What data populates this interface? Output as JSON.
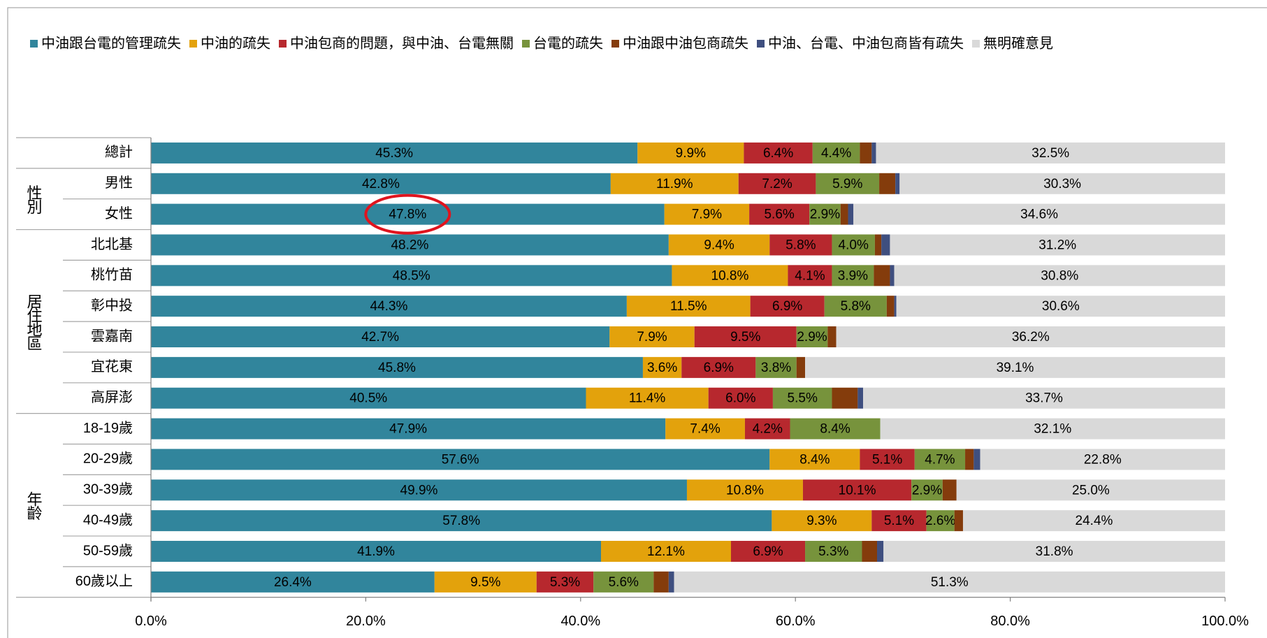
{
  "chart_data": {
    "type": "stacked_bar_horizontal",
    "categories": [
      "總計",
      "男性",
      "女性",
      "北北基",
      "桃竹苗",
      "彰中投",
      "雲嘉南",
      "宜花東",
      "高屏澎",
      "18-19歲",
      "20-29歲",
      "30-39歲",
      "40-49歲",
      "50-59歲",
      "60歲以上"
    ],
    "category_groups": [
      null,
      "性別",
      "性別",
      "居住地區",
      "居住地區",
      "居住地區",
      "居住地區",
      "居住地區",
      "居住地區",
      "年齡",
      "年齡",
      "年齡",
      "年齡",
      "年齡",
      "年齡"
    ],
    "series": [
      {
        "name": "中油跟台電的管理疏失",
        "color": "#31859c",
        "label_color": "#e6eef0",
        "values": [
          45.3,
          42.8,
          47.8,
          48.2,
          48.5,
          44.3,
          42.7,
          45.8,
          40.5,
          47.9,
          57.6,
          49.9,
          57.8,
          41.9,
          26.4
        ],
        "value_labels": [
          "45.3%",
          "42.8%",
          "47.8%",
          "48.2%",
          "48.5%",
          "44.3%",
          "42.7%",
          "45.8%",
          "40.5%",
          "47.9%",
          "57.6%",
          "49.9%",
          "57.8%",
          "41.9%",
          "26.4%"
        ]
      },
      {
        "name": "中油的疏失",
        "color": "#e3a20c",
        "label_color": "#000000",
        "values": [
          9.9,
          11.9,
          7.9,
          9.4,
          10.8,
          11.5,
          7.9,
          3.6,
          11.4,
          7.4,
          8.4,
          10.8,
          9.3,
          12.1,
          9.5
        ],
        "value_labels": [
          "9.9%",
          "11.9%",
          "7.9%",
          "9.4%",
          "10.8%",
          "11.5%",
          "7.9%",
          "3.6%",
          "11.4%",
          "7.4%",
          "8.4%",
          "10.8%",
          "9.3%",
          "12.1%",
          "9.5%"
        ]
      },
      {
        "name": "中油包商的問題，與中油、台電無關",
        "color": "#b7282e",
        "label_color": "#f2f2f2",
        "values": [
          6.4,
          7.2,
          5.6,
          5.8,
          4.1,
          6.9,
          9.5,
          6.9,
          6.0,
          4.2,
          5.1,
          10.1,
          5.1,
          6.9,
          5.3
        ],
        "value_labels": [
          "6.4%",
          "7.2%",
          "5.6%",
          "5.8%",
          "4.1%",
          "6.9%",
          "9.5%",
          "6.9%",
          "6.0%",
          "4.2%",
          "5.1%",
          "10.1%",
          "5.1%",
          "6.9%",
          "5.3%"
        ]
      },
      {
        "name": "台電的疏失",
        "color": "#77933c",
        "label_color": "#000000",
        "values": [
          4.4,
          5.9,
          2.9,
          4.0,
          3.9,
          5.8,
          2.9,
          3.8,
          5.5,
          8.4,
          4.7,
          2.9,
          2.6,
          5.3,
          5.6
        ],
        "value_labels": [
          "4.4%",
          "5.9%",
          "2.9%",
          "4.0%",
          "3.9%",
          "5.8%",
          "2.9%",
          "3.8%",
          "5.5%",
          "8.4%",
          "4.7%",
          "2.9%",
          "2.6%",
          "5.3%",
          "5.6%"
        ]
      },
      {
        "name": "中油跟中油包商疏失",
        "color": "#843c0c",
        "values": [
          1.1,
          1.5,
          0.7,
          0.6,
          1.5,
          0.7,
          0.8,
          0.8,
          2.4,
          0,
          0.8,
          1.3,
          0.8,
          1.4,
          1.4
        ]
      },
      {
        "name": "中油、台電、中油包商皆有疏失",
        "color": "#3f4f7f",
        "values": [
          0.4,
          0.4,
          0.5,
          0.8,
          0.4,
          0.2,
          0,
          0,
          0.5,
          0,
          0.6,
          0,
          0,
          0.6,
          0.5
        ]
      },
      {
        "name": "無明確意見",
        "color": "#d9d9d9",
        "label_color": "#000000",
        "values": [
          32.5,
          30.3,
          34.6,
          31.2,
          30.8,
          30.6,
          36.2,
          39.1,
          33.7,
          32.1,
          22.8,
          25.0,
          24.4,
          31.8,
          51.3
        ],
        "value_labels": [
          "32.5%",
          "30.3%",
          "34.6%",
          "31.2%",
          "30.8%",
          "30.6%",
          "36.2%",
          "39.1%",
          "33.7%",
          "32.1%",
          "22.8%",
          "25.0%",
          "24.4%",
          "31.8%",
          "51.3%"
        ]
      }
    ],
    "xlim": [
      0,
      100
    ],
    "xticks": [
      {
        "value": 0,
        "label": "0.0%"
      },
      {
        "value": 20,
        "label": "20.0%"
      },
      {
        "value": 40,
        "label": "40.0%"
      },
      {
        "value": 60,
        "label": "60.0%"
      },
      {
        "value": 80,
        "label": "80.0%"
      },
      {
        "value": 100,
        "label": "100.0%"
      }
    ],
    "legend": "top"
  }
}
